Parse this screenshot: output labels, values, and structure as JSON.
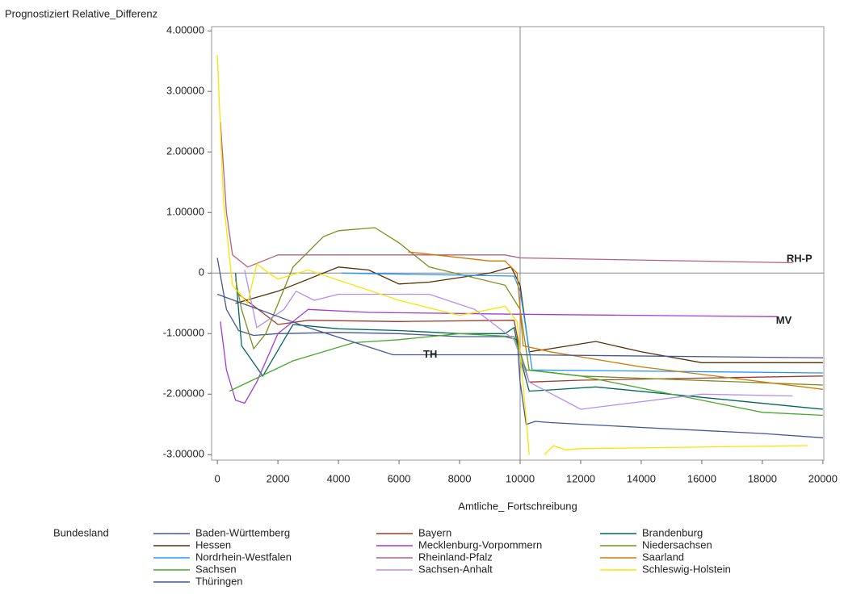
{
  "chart_data": {
    "type": "line",
    "y_label": "Prognostiziert Relative_Differenz",
    "x_label": "Amtliche_ Fortschreibung",
    "legend_title": "Bundesland",
    "xlim": [
      -190,
      20030
    ],
    "ylim": [
      -3.09,
      4.07
    ],
    "xticks": [
      0,
      2000,
      4000,
      6000,
      8000,
      10000,
      12000,
      14000,
      16000,
      18000,
      20000
    ],
    "yticks": [
      {
        "value": -3,
        "label": "-3.00000"
      },
      {
        "value": -2,
        "label": "-2.00000"
      },
      {
        "value": -1,
        "label": "-1.00000"
      },
      0,
      {
        "value": 1,
        "label": "1.00000"
      },
      {
        "value": 2,
        "label": "2.00000"
      },
      {
        "value": 3,
        "label": "3.00000"
      },
      {
        "value": 4,
        "label": "4.00000"
      }
    ],
    "refx": 10000,
    "refy": 0,
    "annotations": [
      {
        "text": "RH-P",
        "x": 18800,
        "y": 0.23
      },
      {
        "text": "MV",
        "x": 18450,
        "y": -0.79
      },
      {
        "text": "TH",
        "x": 6800,
        "y": -1.35
      }
    ],
    "series": [
      {
        "name": "Baden-Württemberg",
        "color": "#445694",
        "x": [
          0,
          300,
          700,
          1200,
          2000,
          4000,
          6000,
          8000,
          9500,
          9900,
          10000,
          10200,
          10500,
          11000,
          14000,
          18000,
          20000
        ],
        "values": [
          0.25,
          -0.6,
          -0.95,
          -1.03,
          -1.0,
          -0.98,
          -1.0,
          -1.05,
          -1.05,
          -1.1,
          -1.8,
          -2.5,
          -2.45,
          -2.47,
          -2.55,
          -2.65,
          -2.72
        ]
      },
      {
        "name": "Bayern",
        "color": "#a23a2e",
        "x": [
          700,
          2000,
          3000,
          6000,
          9800,
          10000,
          10300,
          12000,
          20000
        ],
        "values": [
          -0.35,
          -0.85,
          -0.78,
          -0.8,
          -0.78,
          -1.3,
          -1.8,
          -1.77,
          -1.7
        ]
      },
      {
        "name": "Brandenburg",
        "color": "#01665e",
        "x": [
          600,
          800,
          1500,
          2500,
          4000,
          6000,
          8000,
          9500,
          9800,
          10000,
          10300,
          11000,
          12500,
          20000
        ],
        "values": [
          0,
          -1.2,
          -1.7,
          -0.85,
          -0.92,
          -0.95,
          -1.0,
          -1.0,
          -0.9,
          -1.4,
          -1.95,
          -1.93,
          -1.88,
          -2.25
        ]
      },
      {
        "name": "Hessen",
        "color": "#543005",
        "x": [
          600,
          2000,
          4000,
          5000,
          6000,
          7000,
          9000,
          9700,
          10000,
          10300,
          11000,
          12500,
          14000,
          16000,
          20000
        ],
        "values": [
          -0.5,
          -0.3,
          0.1,
          0.05,
          -0.18,
          -0.15,
          0,
          0.1,
          -0.2,
          -1.3,
          -1.25,
          -1.13,
          -1.3,
          -1.48,
          -1.48
        ]
      },
      {
        "name": "Mecklenburg-Vorpommern",
        "color": "#9d3cdb",
        "x": [
          100,
          300,
          600,
          900,
          1300,
          2000,
          3000,
          5000,
          10000,
          18500
        ],
        "values": [
          -0.8,
          -1.6,
          -2.1,
          -2.15,
          -1.8,
          -1.0,
          -0.6,
          -0.65,
          -0.68,
          -0.72
        ]
      },
      {
        "name": "Niedersachsen",
        "color": "#7f8e1f",
        "x": [
          600,
          800,
          1200,
          1600,
          2500,
          3500,
          4000,
          5200,
          6000,
          7000,
          9500,
          10000,
          10300,
          12000,
          20000
        ],
        "values": [
          -0.1,
          -0.6,
          -1.25,
          -1.0,
          0.1,
          0.6,
          0.7,
          0.75,
          0.5,
          0.1,
          -0.2,
          -0.6,
          -1.6,
          -1.7,
          -1.85
        ]
      },
      {
        "name": "Nordrhein-Westfalen",
        "color": "#2597fa",
        "x": [
          4100,
          9800,
          10000,
          10400,
          20000
        ],
        "values": [
          0,
          -0.05,
          -0.3,
          -1.6,
          -1.65
        ]
      },
      {
        "name": "Rheinland-Pfalz",
        "color": "#b26084",
        "x": [
          100,
          300,
          500,
          1000,
          1500,
          2000,
          6000,
          9500,
          10000,
          19000
        ],
        "values": [
          2.5,
          1.0,
          0.3,
          0.1,
          0.2,
          0.3,
          0.3,
          0.3,
          0.25,
          0.17
        ]
      },
      {
        "name": "Saarland",
        "color": "#d17800",
        "x": [
          6300,
          9000,
          9500,
          9900,
          10100,
          11000,
          14000,
          20000
        ],
        "values": [
          0.35,
          0.2,
          0.2,
          0,
          -1.2,
          -1.3,
          -1.55,
          -1.92
        ]
      },
      {
        "name": "Sachsen",
        "color": "#47a82a",
        "x": [
          400,
          2500,
          4500,
          6000,
          8000,
          9800,
          10200,
          12000,
          18000,
          20000
        ],
        "values": [
          -1.95,
          -1.45,
          -1.15,
          -1.1,
          -1.0,
          -1.05,
          -1.6,
          -1.7,
          -2.3,
          -2.35
        ]
      },
      {
        "name": "Sachsen-Anhalt",
        "color": "#b38ef3",
        "x": [
          900,
          1300,
          2200,
          2600,
          3200,
          4000,
          7000,
          8500,
          9800,
          10300,
          12000,
          16000,
          19000
        ],
        "values": [
          0.05,
          -0.9,
          -0.6,
          -0.3,
          -0.45,
          -0.35,
          -0.35,
          -0.6,
          -1.1,
          -1.8,
          -2.25,
          -2.0,
          -2.03
        ]
      },
      {
        "name": "Schleswig-Holstein",
        "color": "#f9e500",
        "x": [
          0,
          200,
          500,
          1000,
          1300,
          1700,
          2000,
          3000,
          6000,
          8000,
          9500,
          9900,
          10200,
          10300,
          10500,
          10800,
          11100,
          11500,
          12000,
          19500
        ],
        "values": [
          3.6,
          1.2,
          -0.2,
          -0.5,
          0.15,
          0,
          -0.1,
          0.05,
          -0.45,
          -0.7,
          -0.55,
          -0.8,
          -2.4,
          -3.0,
          null,
          -3.0,
          -2.85,
          -2.92,
          -2.9,
          -2.85
        ]
      },
      {
        "name": "Thüringen",
        "color": "#445694",
        "x": [
          0,
          3000,
          5800,
          10000,
          20000
        ],
        "values": [
          -0.35,
          -0.9,
          -1.35,
          -1.35,
          -1.4
        ]
      }
    ]
  }
}
